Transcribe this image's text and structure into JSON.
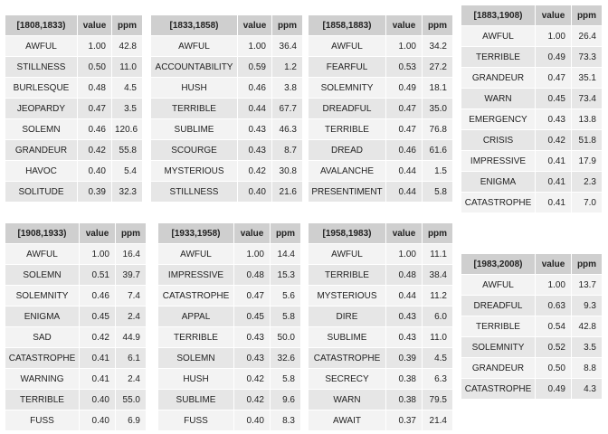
{
  "tables": [
    {
      "period": "[1808,1833)",
      "value_header": "value",
      "ppm_header": "ppm",
      "rows": [
        [
          "AWFUL",
          "1.00",
          "42.8"
        ],
        [
          "STILLNESS",
          "0.50",
          "11.0"
        ],
        [
          "BURLESQUE",
          "0.48",
          "4.5"
        ],
        [
          "JEOPARDY",
          "0.47",
          "3.5"
        ],
        [
          "SOLEMN",
          "0.46",
          "120.6"
        ],
        [
          "GRANDEUR",
          "0.42",
          "55.8"
        ],
        [
          "HAVOC",
          "0.40",
          "5.4"
        ],
        [
          "SOLITUDE",
          "0.39",
          "32.3"
        ]
      ]
    },
    {
      "period": "[1833,1858)",
      "value_header": "value",
      "ppm_header": "ppm",
      "rows": [
        [
          "AWFUL",
          "1.00",
          "36.4"
        ],
        [
          "ACCOUNTABILITY",
          "0.59",
          "1.2"
        ],
        [
          "HUSH",
          "0.46",
          "3.8"
        ],
        [
          "TERRIBLE",
          "0.44",
          "67.7"
        ],
        [
          "SUBLIME",
          "0.43",
          "46.3"
        ],
        [
          "SCOURGE",
          "0.43",
          "8.7"
        ],
        [
          "MYSTERIOUS",
          "0.42",
          "30.8"
        ],
        [
          "STILLNESS",
          "0.40",
          "21.6"
        ]
      ]
    },
    {
      "period": "[1858,1883)",
      "value_header": "value",
      "ppm_header": "ppm",
      "rows": [
        [
          "AWFUL",
          "1.00",
          "34.2"
        ],
        [
          "FEARFUL",
          "0.53",
          "27.2"
        ],
        [
          "SOLEMNITY",
          "0.49",
          "18.1"
        ],
        [
          "DREADFUL",
          "0.47",
          "35.0"
        ],
        [
          "TERRIBLE",
          "0.47",
          "76.8"
        ],
        [
          "DREAD",
          "0.46",
          "61.6"
        ],
        [
          "AVALANCHE",
          "0.44",
          "1.5"
        ],
        [
          "PRESENTIMENT",
          "0.44",
          "5.8"
        ]
      ]
    },
    {
      "period": "[1883,1908)",
      "value_header": "value",
      "ppm_header": "ppm",
      "rows": [
        [
          "AWFUL",
          "1.00",
          "26.4"
        ],
        [
          "TERRIBLE",
          "0.49",
          "73.3"
        ],
        [
          "GRANDEUR",
          "0.47",
          "35.1"
        ],
        [
          "WARN",
          "0.45",
          "73.4"
        ],
        [
          "EMERGENCY",
          "0.43",
          "13.8"
        ],
        [
          "CRISIS",
          "0.42",
          "51.8"
        ],
        [
          "IMPRESSIVE",
          "0.41",
          "17.9"
        ],
        [
          "ENIGMA",
          "0.41",
          "2.3"
        ],
        [
          "CATASTROPHE",
          "0.41",
          "7.0"
        ]
      ]
    },
    {
      "period": "[1908,1933)",
      "value_header": "value",
      "ppm_header": "ppm",
      "rows": [
        [
          "AWFUL",
          "1.00",
          "16.4"
        ],
        [
          "SOLEMN",
          "0.51",
          "39.7"
        ],
        [
          "SOLEMNITY",
          "0.46",
          "7.4"
        ],
        [
          "ENIGMA",
          "0.45",
          "2.4"
        ],
        [
          "SAD",
          "0.42",
          "44.9"
        ],
        [
          "CATASTROPHE",
          "0.41",
          "6.1"
        ],
        [
          "WARNING",
          "0.41",
          "2.4"
        ],
        [
          "TERRIBLE",
          "0.40",
          "55.0"
        ],
        [
          "FUSS",
          "0.40",
          "6.9"
        ]
      ]
    },
    {
      "period": "[1933,1958)",
      "value_header": "value",
      "ppm_header": "ppm",
      "rows": [
        [
          "AWFUL",
          "1.00",
          "14.4"
        ],
        [
          "IMPRESSIVE",
          "0.48",
          "15.3"
        ],
        [
          "CATASTROPHE",
          "0.47",
          "5.6"
        ],
        [
          "APPAL",
          "0.45",
          "5.8"
        ],
        [
          "TERRIBLE",
          "0.43",
          "50.0"
        ],
        [
          "SOLEMN",
          "0.43",
          "32.6"
        ],
        [
          "HUSH",
          "0.42",
          "5.8"
        ],
        [
          "SUBLIME",
          "0.42",
          "9.6"
        ],
        [
          "FUSS",
          "0.40",
          "8.3"
        ]
      ]
    },
    {
      "period": "[1958,1983)",
      "value_header": "value",
      "ppm_header": "ppm",
      "rows": [
        [
          "AWFUL",
          "1.00",
          "11.1"
        ],
        [
          "TERRIBLE",
          "0.48",
          "38.4"
        ],
        [
          "MYSTERIOUS",
          "0.44",
          "11.2"
        ],
        [
          "DIRE",
          "0.43",
          "6.0"
        ],
        [
          "SUBLIME",
          "0.43",
          "11.0"
        ],
        [
          "CATASTROPHE",
          "0.39",
          "4.5"
        ],
        [
          "SECRECY",
          "0.38",
          "6.3"
        ],
        [
          "WARN",
          "0.38",
          "79.5"
        ],
        [
          "AWAIT",
          "0.37",
          "21.4"
        ]
      ]
    },
    {
      "period": "[1983,2008)",
      "value_header": "value",
      "ppm_header": "ppm",
      "rows": [
        [
          "AWFUL",
          "1.00",
          "13.7"
        ],
        [
          "DREADFUL",
          "0.63",
          "9.3"
        ],
        [
          "TERRIBLE",
          "0.54",
          "42.8"
        ],
        [
          "SOLEMNITY",
          "0.52",
          "3.5"
        ],
        [
          "GRANDEUR",
          "0.50",
          "8.8"
        ],
        [
          "CATASTROPHE",
          "0.49",
          "4.3"
        ]
      ]
    }
  ]
}
